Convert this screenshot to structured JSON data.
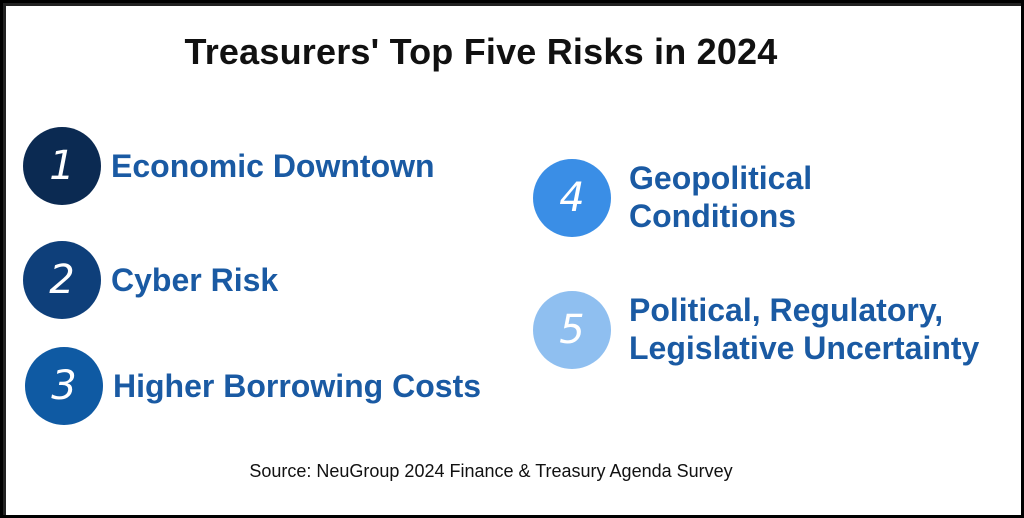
{
  "title": "Treasurers' Top Five Risks in 2024",
  "risks": [
    {
      "number": "1",
      "label": "Economic Downtown",
      "color": "#0b2a52"
    },
    {
      "number": "2",
      "label": "Cyber Risk",
      "color": "#0e3f7a"
    },
    {
      "number": "3",
      "label": "Higher Borrowing Costs",
      "color": "#0f5aa3"
    },
    {
      "number": "4",
      "label_line1": "Geopolitical",
      "label_line2": "Conditions",
      "color": "#3a8ee6"
    },
    {
      "number": "5",
      "label_line1": "Political, Regulatory,",
      "label_line2": "Legislative Uncertainty",
      "color": "#8fbff0"
    }
  ],
  "source": "Source: NeuGroup 2024 Finance & Treasury Agenda Survey",
  "colors": {
    "label_text": "#1a5aa3",
    "title_text": "#111111"
  }
}
